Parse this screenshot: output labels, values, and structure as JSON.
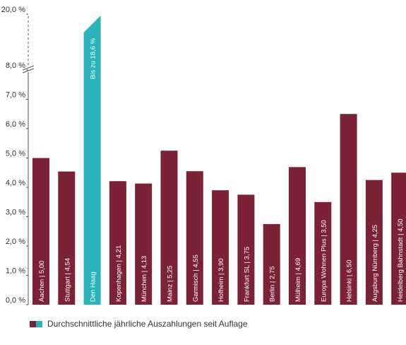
{
  "chart_data": {
    "type": "bar",
    "categories": [
      "Aachen",
      "Stuttgart",
      "Den Haag",
      "Kopenhagen",
      "München",
      "Mainz",
      "Garmisch",
      "Hofheim",
      "Frankfurt SL",
      "Berlin",
      "Mülheim",
      "Europa Wohnen Plus",
      "Helsinki",
      "Augsburg Nürnberg",
      "Heidelberg Bahnstadt"
    ],
    "bar_labels": [
      "Aachen | 5,00",
      "Stuttgart | 4,54",
      "Den Haag",
      "Kopenhagen | 4,21",
      "München | 4,13",
      "Mainz | 5,25",
      "Garmisch | 4,55",
      "Hofheim | 3,90",
      "Frankfurt SL | 3,75",
      "Berlin | 2,75",
      "Mülheim | 4,69",
      "Europa Wohnen Plus | 3,50",
      "Helsinki | 6,50",
      "Augsburg Nürnberg | 4,25",
      "Heidelberg Bahnstadt | 4,50"
    ],
    "series": [
      {
        "name": "Durchschnittliche jährliche Auszahlungen seit Auflage",
        "values": [
          5.0,
          4.54,
          18.6,
          4.21,
          4.13,
          5.25,
          4.55,
          3.9,
          3.75,
          2.75,
          4.69,
          3.5,
          6.5,
          4.25,
          4.5
        ]
      }
    ],
    "highlight": {
      "category": "Den Haag",
      "annotation": "Bis zu 18,6 %"
    },
    "yticks": [
      "0,0 %",
      "1,0 %",
      "2,0 %",
      "3,0 %",
      "4,0 %",
      "5,0 %",
      "6,0 %",
      "7,0 %",
      "8,0 %",
      "20,0 %"
    ],
    "ylim": [
      0,
      20
    ],
    "axis_break": [
      8,
      20
    ],
    "colors": {
      "bar": "#7b2235",
      "highlight": "#2ab3b8",
      "axis": "#555555"
    }
  },
  "legend": {
    "label": "Durchschnittliche jährliche Auszahlungen seit Auflage"
  }
}
